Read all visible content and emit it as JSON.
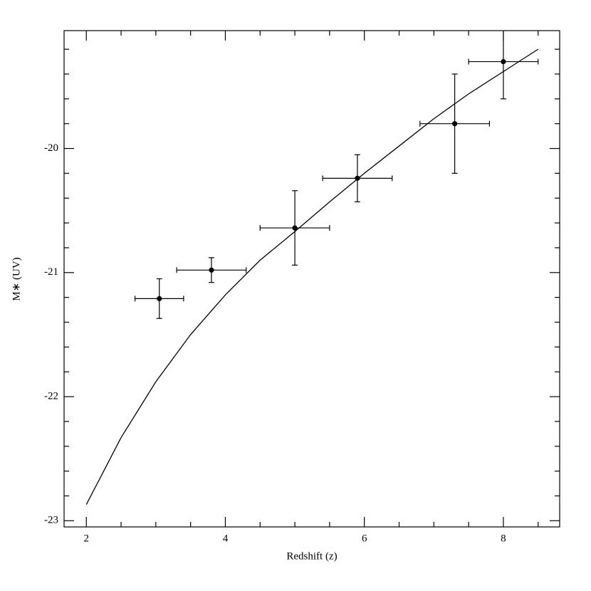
{
  "chart_data": {
    "type": "scatter",
    "xlabel": "Redshift (z)",
    "ylabel": "M∗ (UV)",
    "x": [
      3.05,
      3.8,
      5.0,
      5.9,
      7.3,
      8.0
    ],
    "y": [
      -21.21,
      -20.98,
      -20.64,
      -20.24,
      -19.8,
      -19.3
    ],
    "x_err": [
      0.35,
      0.5,
      0.5,
      0.5,
      0.5,
      0.5
    ],
    "y_err": [
      0.16,
      0.1,
      0.3,
      0.19,
      0.4,
      0.3
    ],
    "color": "#000000",
    "fit": {
      "x": [
        2,
        2.5,
        3,
        3.5,
        4,
        4.5,
        5,
        5.5,
        6,
        6.5,
        7,
        7.5,
        8,
        8.5
      ],
      "y": [
        -22.87,
        -22.33,
        -21.88,
        -21.5,
        -21.18,
        -20.9,
        -20.67,
        -20.43,
        -20.2,
        -19.98,
        -19.76,
        -19.56,
        -19.38,
        -19.2
      ]
    },
    "xlim": [
      1.68,
      8.81
    ],
    "ylim": [
      -23.05,
      -19.05
    ],
    "xticks": [
      2,
      4,
      6,
      8
    ],
    "yticks": [
      -20,
      -21,
      -22,
      -23
    ],
    "xticks_minor": [
      2.5,
      3,
      3.5,
      4.5,
      5,
      5.5,
      6.5,
      7,
      7.5,
      8.5
    ],
    "yticks_minor": [
      -19.2,
      -19.4,
      -19.6,
      -19.8,
      -20.2,
      -20.4,
      -20.6,
      -20.8,
      -21.2,
      -21.4,
      -21.6,
      -21.8,
      -22.2,
      -22.4,
      -22.6,
      -22.8
    ]
  }
}
